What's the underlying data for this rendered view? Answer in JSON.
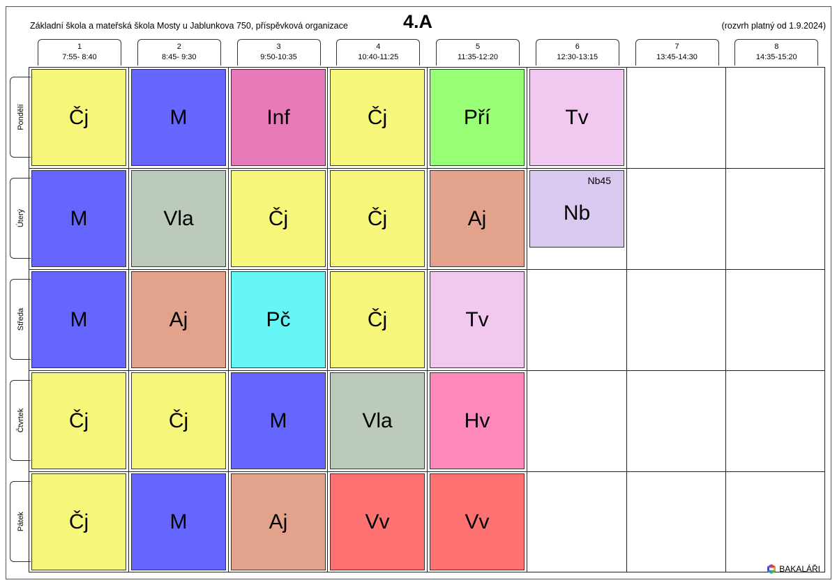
{
  "header": {
    "school": "Základní škola a mateřská škola Mosty u Jablunkova 750, příspěvková organizace",
    "class": "4.A",
    "valid_from": "(rozvrh platný od 1.9.2024)"
  },
  "periods": [
    {
      "num": "1",
      "time": "7:55- 8:40"
    },
    {
      "num": "2",
      "time": "8:45- 9:30"
    },
    {
      "num": "3",
      "time": "9:50-10:35"
    },
    {
      "num": "4",
      "time": "10:40-11:25"
    },
    {
      "num": "5",
      "time": "11:35-12:20"
    },
    {
      "num": "6",
      "time": "12:30-13:15"
    },
    {
      "num": "7",
      "time": "13:45-14:30"
    },
    {
      "num": "8",
      "time": "14:35-15:20"
    }
  ],
  "days": [
    "Pondělí",
    "Úterý",
    "Středa",
    "Čtvrtek",
    "Pátek"
  ],
  "colors": {
    "Čj": "#f6f67a",
    "M": "#6666ff",
    "Inf": "#e87ab9",
    "Pří": "#99ff77",
    "Tv": "#f0c8f0",
    "Vla": "#bccabb",
    "Aj": "#e3a28c",
    "Nb": "#d9c8f0",
    "Pč": "#66f6f6",
    "Hv": "#ff88bb",
    "Vv": "#ff7272"
  },
  "schedule": [
    [
      "Čj",
      "M",
      "Inf",
      "Čj",
      "Pří",
      "Tv"
    ],
    [
      "M",
      "Vla",
      "Čj",
      "Čj",
      "Aj",
      "Nb"
    ],
    [
      "M",
      "Aj",
      "Pč",
      "Čj",
      "Tv"
    ],
    [
      "Čj",
      "Čj",
      "M",
      "Vla",
      "Hv"
    ],
    [
      "Čj",
      "M",
      "Aj",
      "Vv",
      "Vv"
    ]
  ],
  "group_note": {
    "day": 1,
    "period": 5,
    "room": "Nb45"
  },
  "logo": {
    "icon": "bakalari-logo-icon",
    "text": "BAKALÁŘI"
  }
}
